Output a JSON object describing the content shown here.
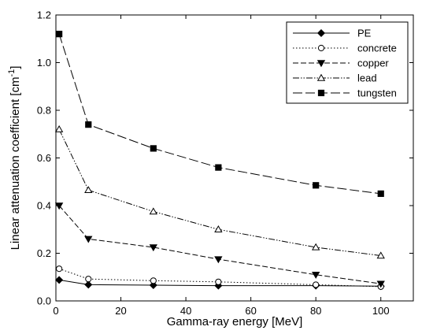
{
  "chart_data": {
    "type": "line",
    "title": "",
    "xlabel": "Gamma-ray energy [MeV]",
    "ylabel": "Linear attenuation coefficient [cm",
    "ylabel_superscript": "-1",
    "ylabel_suffix": "]",
    "xlim": [
      0,
      110
    ],
    "ylim": [
      0,
      1.2
    ],
    "xticks": [
      0,
      20,
      40,
      60,
      80,
      100
    ],
    "yticks": [
      0.0,
      0.2,
      0.4,
      0.6,
      0.8,
      1.0,
      1.2
    ],
    "xtick_labels": [
      "0",
      "20",
      "40",
      "60",
      "80",
      "100"
    ],
    "ytick_labels": [
      "0.0",
      "0.2",
      "0.4",
      "0.6",
      "0.8",
      "1.0",
      "1.2"
    ],
    "grid": false,
    "legend_position": "top-right",
    "x": [
      1,
      10,
      30,
      50,
      80,
      100
    ],
    "series": [
      {
        "name": "PE",
        "values": [
          0.088,
          0.068,
          0.066,
          0.064,
          0.064,
          0.062
        ],
        "marker": "diamond",
        "fill": "#000000",
        "dash": ""
      },
      {
        "name": "concrete",
        "values": [
          0.135,
          0.092,
          0.085,
          0.08,
          0.068,
          0.06
        ],
        "marker": "circle",
        "fill": "#ffffff",
        "dash": "1.5 2.5"
      },
      {
        "name": "copper",
        "values": [
          0.4,
          0.26,
          0.225,
          0.175,
          0.11,
          0.072
        ],
        "marker": "triangle-down",
        "fill": "#000000",
        "dash": "7 3"
      },
      {
        "name": "lead",
        "values": [
          0.72,
          0.465,
          0.375,
          0.3,
          0.225,
          0.19
        ],
        "marker": "triangle-up",
        "fill": "#ffffff",
        "dash": "8 2 1.5 2 1.5 2"
      },
      {
        "name": "tungsten",
        "values": [
          1.12,
          0.74,
          0.64,
          0.56,
          0.485,
          0.45
        ],
        "marker": "square",
        "fill": "#000000",
        "dash": "12 4"
      }
    ]
  }
}
